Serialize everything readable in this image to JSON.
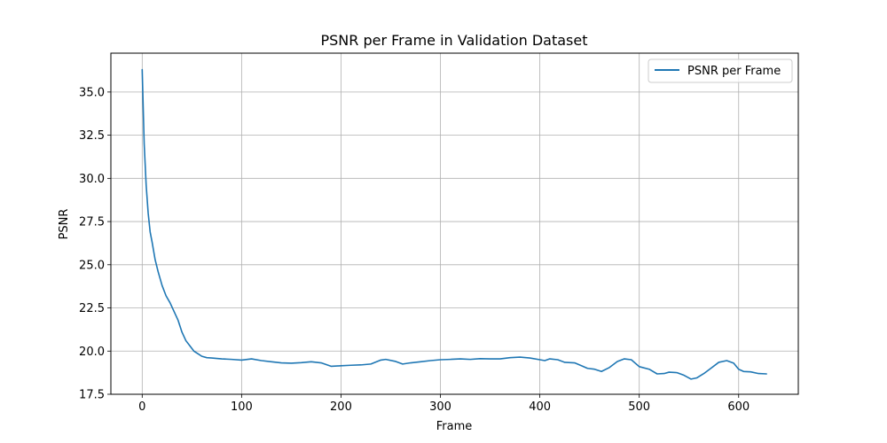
{
  "chart_data": {
    "type": "line",
    "title": "PSNR per Frame in Validation Dataset",
    "xlabel": "Frame",
    "ylabel": "PSNR",
    "xlim": [
      -31.5,
      660
    ],
    "ylim": [
      17.5,
      37.25
    ],
    "xticks": [
      0,
      100,
      200,
      300,
      400,
      500,
      600
    ],
    "xtick_labels": [
      "0",
      "100",
      "200",
      "300",
      "400",
      "500",
      "600"
    ],
    "yticks": [
      17.5,
      20.0,
      22.5,
      25.0,
      27.5,
      30.0,
      32.5,
      35.0
    ],
    "ytick_labels": [
      "17.5",
      "20.0",
      "22.5",
      "25.0",
      "27.5",
      "30.0",
      "32.5",
      "35.0"
    ],
    "grid": true,
    "legend_position": "top-right",
    "color": "#1f77b4",
    "series": [
      {
        "name": "PSNR per Frame",
        "x": [
          0,
          2,
          4,
          6,
          8,
          10,
          13,
          16,
          20,
          24,
          28,
          32,
          36,
          40,
          44,
          48,
          52,
          56,
          60,
          65,
          70,
          80,
          90,
          100,
          110,
          120,
          130,
          140,
          150,
          160,
          170,
          180,
          190,
          200,
          210,
          220,
          230,
          240,
          245,
          255,
          262,
          270,
          280,
          290,
          300,
          310,
          320,
          330,
          340,
          350,
          360,
          370,
          380,
          390,
          400,
          405,
          410,
          418,
          425,
          435,
          440,
          448,
          455,
          462,
          470,
          478,
          485,
          492,
          500,
          510,
          518,
          525,
          530,
          538,
          545,
          552,
          558,
          565,
          572,
          580,
          588,
          595,
          600,
          605,
          612,
          620,
          628
        ],
        "y": [
          36.3,
          32.0,
          29.6,
          28.0,
          26.9,
          26.3,
          25.3,
          24.6,
          23.8,
          23.2,
          22.8,
          22.3,
          21.8,
          21.1,
          20.6,
          20.3,
          20.0,
          19.85,
          19.7,
          19.62,
          19.6,
          19.55,
          19.52,
          19.48,
          19.55,
          19.45,
          19.38,
          19.32,
          19.3,
          19.33,
          19.38,
          19.32,
          19.12,
          19.15,
          19.18,
          19.2,
          19.25,
          19.48,
          19.52,
          19.4,
          19.25,
          19.32,
          19.38,
          19.45,
          19.5,
          19.52,
          19.55,
          19.52,
          19.56,
          19.55,
          19.55,
          19.62,
          19.65,
          19.6,
          19.5,
          19.45,
          19.55,
          19.5,
          19.35,
          19.32,
          19.2,
          19.0,
          18.95,
          18.82,
          19.05,
          19.4,
          19.55,
          19.5,
          19.1,
          18.95,
          18.68,
          18.7,
          18.78,
          18.75,
          18.6,
          18.38,
          18.45,
          18.7,
          19.0,
          19.35,
          19.45,
          19.3,
          18.95,
          18.82,
          18.8,
          18.7,
          18.68
        ]
      }
    ]
  }
}
